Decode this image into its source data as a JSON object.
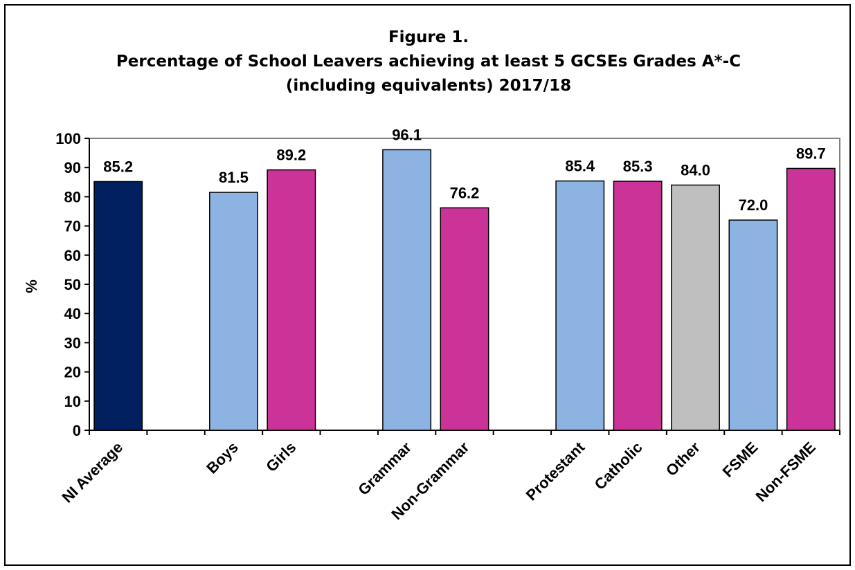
{
  "chart_data": {
    "type": "bar",
    "title": [
      "Figure 1.",
      "Percentage of School Leavers achieving at least 5 GCSEs Grades A*-C",
      "(including equivalents) 2017/18"
    ],
    "ylabel": "%",
    "xlabel": "",
    "ylim": [
      0,
      100
    ],
    "yticks": [
      0,
      10,
      20,
      30,
      40,
      50,
      60,
      70,
      80,
      90,
      100
    ],
    "grid": false,
    "legend": "none",
    "categories": [
      "NI Average",
      "Boys",
      "Girls",
      "Grammar",
      "Non-Grammar",
      "Protestant",
      "Catholic",
      "Other",
      "FSME",
      "Non-FSME"
    ],
    "values": [
      85.2,
      81.5,
      89.2,
      96.1,
      76.2,
      85.4,
      85.3,
      84.0,
      72.0,
      89.7
    ],
    "data_labels": [
      "85.2",
      "81.5",
      "89.2",
      "96.1",
      "76.2",
      "85.4",
      "85.3",
      "84.0",
      "72.0",
      "89.7"
    ],
    "groups": [
      [
        "NI Average"
      ],
      [
        "Boys",
        "Girls"
      ],
      [
        "Grammar",
        "Non-Grammar"
      ],
      [
        "Protestant",
        "Catholic",
        "Other"
      ],
      [
        "FSME",
        "Non-FSME"
      ]
    ],
    "colors": [
      "#002060",
      "#8DB3E2",
      "#CC3399",
      "#8DB3E2",
      "#CC3399",
      "#8DB3E2",
      "#CC3399",
      "#BFBFBF",
      "#8DB3E2",
      "#CC3399"
    ],
    "plot_border_color": "#808080"
  }
}
